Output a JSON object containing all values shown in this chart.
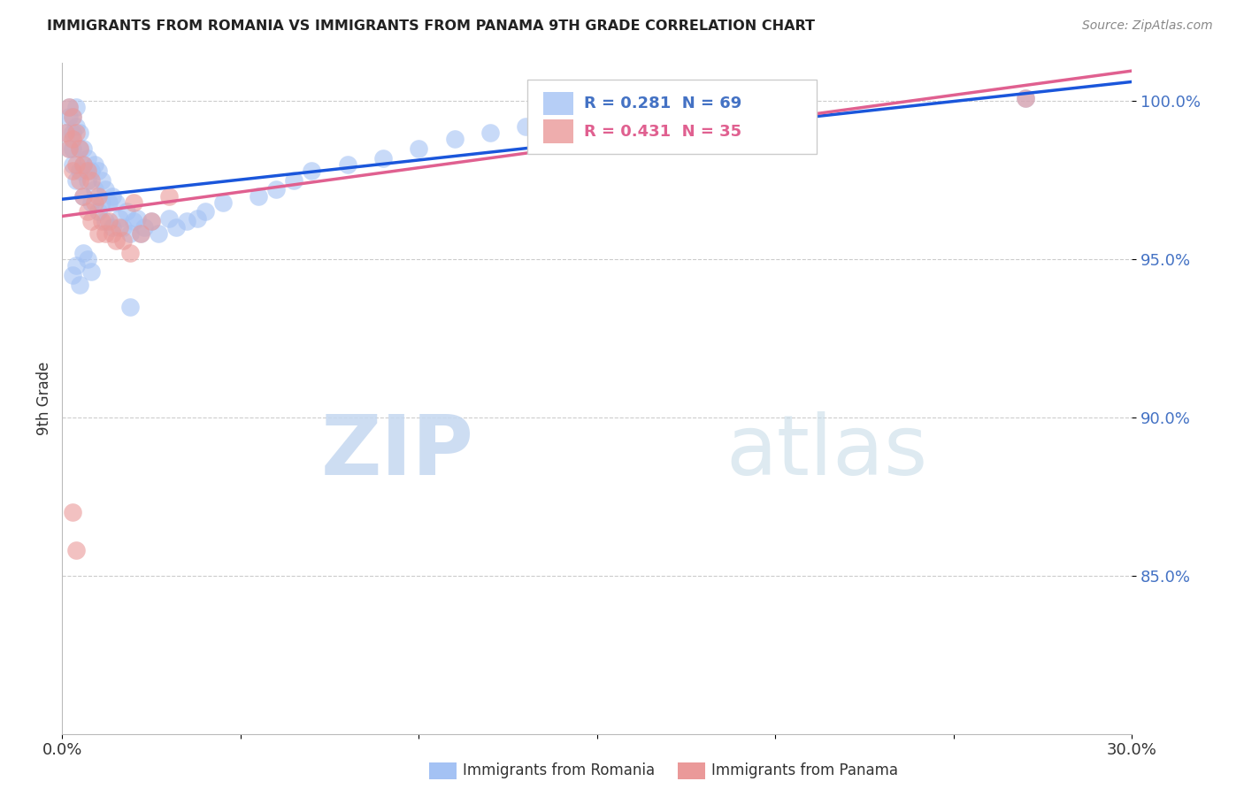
{
  "title": "IMMIGRANTS FROM ROMANIA VS IMMIGRANTS FROM PANAMA 9TH GRADE CORRELATION CHART",
  "source": "Source: ZipAtlas.com",
  "ylabel": "9th Grade",
  "romania_R": 0.281,
  "romania_N": 69,
  "panama_R": 0.431,
  "panama_N": 35,
  "romania_color": "#a4c2f4",
  "panama_color": "#ea9999",
  "romania_line_color": "#1a56db",
  "panama_line_color": "#e06090",
  "legend_label_romania": "Immigrants from Romania",
  "legend_label_panama": "Immigrants from Panama",
  "xlim": [
    0.0,
    0.3
  ],
  "ylim": [
    0.8,
    1.012
  ],
  "yticks": [
    0.85,
    0.9,
    0.95,
    1.0
  ],
  "ytick_labels": [
    "85.0%",
    "90.0%",
    "95.0%",
    "100.0%"
  ],
  "romania_x": [
    0.001,
    0.002,
    0.002,
    0.002,
    0.003,
    0.003,
    0.003,
    0.003,
    0.004,
    0.004,
    0.004,
    0.005,
    0.005,
    0.005,
    0.006,
    0.006,
    0.006,
    0.007,
    0.007,
    0.008,
    0.008,
    0.009,
    0.009,
    0.01,
    0.01,
    0.011,
    0.011,
    0.012,
    0.012,
    0.013,
    0.014,
    0.014,
    0.015,
    0.016,
    0.017,
    0.018,
    0.019,
    0.02,
    0.021,
    0.022,
    0.023,
    0.025,
    0.027,
    0.03,
    0.032,
    0.035,
    0.038,
    0.04,
    0.045,
    0.055,
    0.06,
    0.065,
    0.07,
    0.08,
    0.09,
    0.1,
    0.11,
    0.12,
    0.13,
    0.15,
    0.003,
    0.004,
    0.005,
    0.006,
    0.007,
    0.008,
    0.019,
    0.16,
    0.27
  ],
  "romania_y": [
    0.99,
    0.995,
    0.998,
    0.985,
    0.995,
    0.99,
    0.985,
    0.98,
    0.998,
    0.992,
    0.975,
    0.99,
    0.985,
    0.978,
    0.985,
    0.98,
    0.97,
    0.982,
    0.975,
    0.978,
    0.968,
    0.98,
    0.972,
    0.978,
    0.965,
    0.975,
    0.968,
    0.972,
    0.962,
    0.968,
    0.97,
    0.96,
    0.968,
    0.963,
    0.96,
    0.965,
    0.958,
    0.962,
    0.963,
    0.958,
    0.96,
    0.962,
    0.958,
    0.963,
    0.96,
    0.962,
    0.963,
    0.965,
    0.968,
    0.97,
    0.972,
    0.975,
    0.978,
    0.98,
    0.982,
    0.985,
    0.988,
    0.99,
    0.992,
    0.995,
    0.945,
    0.948,
    0.942,
    0.952,
    0.95,
    0.946,
    0.935,
    1.001,
    1.001
  ],
  "panama_x": [
    0.001,
    0.002,
    0.002,
    0.003,
    0.003,
    0.003,
    0.004,
    0.004,
    0.005,
    0.005,
    0.006,
    0.006,
    0.007,
    0.007,
    0.008,
    0.008,
    0.009,
    0.01,
    0.01,
    0.011,
    0.012,
    0.013,
    0.014,
    0.015,
    0.016,
    0.017,
    0.019,
    0.022,
    0.03,
    0.16,
    0.003,
    0.004,
    0.02,
    0.025,
    0.27
  ],
  "panama_y": [
    0.99,
    0.998,
    0.985,
    0.995,
    0.988,
    0.978,
    0.99,
    0.98,
    0.985,
    0.975,
    0.98,
    0.97,
    0.978,
    0.965,
    0.975,
    0.962,
    0.968,
    0.97,
    0.958,
    0.962,
    0.958,
    0.962,
    0.958,
    0.956,
    0.96,
    0.956,
    0.952,
    0.958,
    0.97,
    1.001,
    0.87,
    0.858,
    0.968,
    0.962,
    1.001
  ]
}
